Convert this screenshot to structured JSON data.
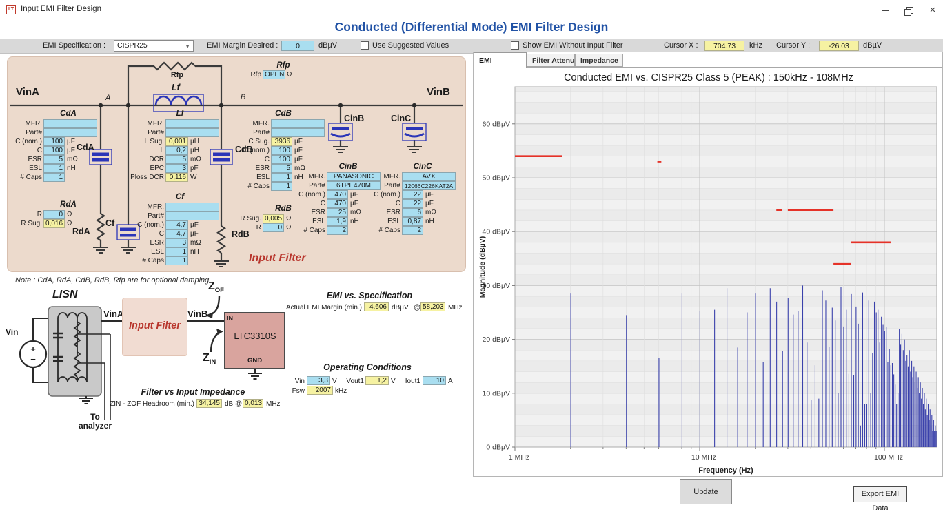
{
  "window": {
    "title": "Input EMI Filter Design",
    "icon_text": "LT",
    "close_glyph": "×"
  },
  "header": {
    "title": "Conducted (Differential Mode) EMI Filter Design"
  },
  "toolbar": {
    "emi_spec_label": "EMI Specification :",
    "emi_spec_value": "CISPR25",
    "margin_label": "EMI Margin Desired :",
    "margin_value": "0",
    "margin_unit": "dBµV",
    "use_suggested_label": "Use Suggested Values",
    "show_without_label": "Show EMI Without Input Filter",
    "cursor_x_label": "Cursor X :",
    "cursor_x_value": "704.73",
    "cursor_x_unit": "kHz",
    "cursor_y_label": "Cursor Y :",
    "cursor_y_value": "-26.03",
    "cursor_y_unit": "dBµV"
  },
  "circuit": {
    "note": "Note : CdA, RdA, CdB, RdB, Rfp are for optional damping",
    "input_filter_label": "Input Filter",
    "wire_labels": {
      "vina": "VinA",
      "vinb": "VinB",
      "node_a": "A",
      "node_b": "B",
      "rfp_sym": "Rfp",
      "lf_sym": "Lf",
      "cda_sym": "CdA",
      "cdb_sym": "CdB",
      "cf_sym": "Cf",
      "rda_sym": "RdA",
      "rdb_sym": "RdB",
      "cinb_sym": "CinB",
      "cinc_sym": "CinC"
    },
    "groups": {
      "rfp": {
        "header": "Rfp",
        "rows": [
          {
            "label": "Rfp",
            "value": "OPEN",
            "unit": "Ω",
            "style": "cyan"
          }
        ]
      },
      "cda": {
        "header": "CdA",
        "rows": [
          {
            "label": "MFR.",
            "value": "",
            "unit": "",
            "style": "cyan",
            "wide": true
          },
          {
            "label": "Part#",
            "value": "",
            "unit": "",
            "style": "cyan",
            "wide": true
          },
          {
            "label": "C (nom.)",
            "value": "100",
            "unit": "µF",
            "style": "cyan"
          },
          {
            "label": "C",
            "value": "100",
            "unit": "µF",
            "style": "cyan"
          },
          {
            "label": "ESR",
            "value": "5",
            "unit": "mΩ",
            "style": "cyan"
          },
          {
            "label": "ESL",
            "value": "1",
            "unit": "nH",
            "style": "cyan"
          },
          {
            "label": "# Caps",
            "value": "1",
            "unit": "",
            "style": "cyan"
          }
        ]
      },
      "rda": {
        "header": "RdA",
        "rows": [
          {
            "label": "R",
            "value": "0",
            "unit": "Ω",
            "style": "cyan"
          },
          {
            "label": "R Sug.",
            "value": "0,016",
            "unit": "Ω",
            "style": "yellow"
          }
        ]
      },
      "lf": {
        "header": "Lf",
        "rows": [
          {
            "label": "MFR.",
            "value": "",
            "unit": "",
            "style": "cyan",
            "wide": true
          },
          {
            "label": "Part#",
            "value": "",
            "unit": "",
            "style": "cyan",
            "wide": true
          },
          {
            "label": "L Sug.",
            "value": "0,001",
            "unit": "µH",
            "style": "yellow"
          },
          {
            "label": "L",
            "value": "0,2",
            "unit": "µH",
            "style": "cyan"
          },
          {
            "label": "DCR",
            "value": "5",
            "unit": "mΩ",
            "style": "cyan"
          },
          {
            "label": "EPC",
            "value": "3",
            "unit": "pF",
            "style": "cyan"
          },
          {
            "label": "Ploss DCR",
            "value": "0,116",
            "unit": "W",
            "style": "yellow"
          }
        ]
      },
      "cf": {
        "header": "Cf",
        "rows": [
          {
            "label": "MFR.",
            "value": "",
            "unit": "",
            "style": "cyan",
            "wide": true
          },
          {
            "label": "Part#",
            "value": "",
            "unit": "",
            "style": "cyan",
            "wide": true
          },
          {
            "label": "C (nom.)",
            "value": "4,7",
            "unit": "µF",
            "style": "cyan"
          },
          {
            "label": "C",
            "value": "4,7",
            "unit": "µF",
            "style": "cyan"
          },
          {
            "label": "ESR",
            "value": "3",
            "unit": "mΩ",
            "style": "cyan"
          },
          {
            "label": "ESL",
            "value": "1",
            "unit": "nH",
            "style": "cyan"
          },
          {
            "label": "# Caps",
            "value": "1",
            "unit": "",
            "style": "cyan"
          }
        ]
      },
      "cdb": {
        "header": "CdB",
        "rows": [
          {
            "label": "MFR.",
            "value": "",
            "unit": "",
            "style": "cyan",
            "wide": true
          },
          {
            "label": "Part#",
            "value": "",
            "unit": "",
            "style": "cyan",
            "wide": true
          },
          {
            "label": "C Sug.",
            "value": "3936",
            "unit": "µF",
            "style": "yellow"
          },
          {
            "label": "C (nom.)",
            "value": "100",
            "unit": "µF",
            "style": "cyan"
          },
          {
            "label": "C",
            "value": "100",
            "unit": "µF",
            "style": "cyan"
          },
          {
            "label": "ESR",
            "value": "5",
            "unit": "mΩ",
            "style": "cyan"
          },
          {
            "label": "ESL",
            "value": "1",
            "unit": "nH",
            "style": "cyan"
          },
          {
            "label": "# Caps",
            "value": "1",
            "unit": "",
            "style": "cyan"
          }
        ]
      },
      "rdb": {
        "header": "RdB",
        "rows": [
          {
            "label": "R Sug.",
            "value": "0,005",
            "unit": "Ω",
            "style": "yellow"
          },
          {
            "label": "R",
            "value": "0",
            "unit": "Ω",
            "style": "cyan"
          }
        ]
      },
      "cinb": {
        "header": "CinB",
        "rows": [
          {
            "label": "MFR.",
            "value": "PANASONIC",
            "unit": "",
            "style": "cyan",
            "wide": true
          },
          {
            "label": "Part#",
            "value": "6TPE470M",
            "unit": "",
            "style": "cyan",
            "wide": true
          },
          {
            "label": "C (nom.)",
            "value": "470",
            "unit": "µF",
            "style": "cyan"
          },
          {
            "label": "C",
            "value": "470",
            "unit": "µF",
            "style": "cyan"
          },
          {
            "label": "ESR",
            "value": "25",
            "unit": "mΩ",
            "style": "cyan"
          },
          {
            "label": "ESL",
            "value": "1,9",
            "unit": "nH",
            "style": "cyan"
          },
          {
            "label": "# Caps",
            "value": "2",
            "unit": "",
            "style": "cyan"
          }
        ]
      },
      "cinc": {
        "header": "CinC",
        "rows": [
          {
            "label": "MFR.",
            "value": "AVX",
            "unit": "",
            "style": "cyan",
            "wide": true
          },
          {
            "label": "Part#",
            "value": "12066C226KAT2A",
            "unit": "",
            "style": "cyan",
            "wide": true
          },
          {
            "label": "C (nom.)",
            "value": "22",
            "unit": "µF",
            "style": "cyan"
          },
          {
            "label": "C",
            "value": "22",
            "unit": "µF",
            "style": "cyan"
          },
          {
            "label": "ESR",
            "value": "6",
            "unit": "mΩ",
            "style": "cyan"
          },
          {
            "label": "ESL",
            "value": "0,87",
            "unit": "nH",
            "style": "cyan"
          },
          {
            "label": "# Caps",
            "value": "2",
            "unit": "",
            "style": "cyan"
          }
        ]
      }
    }
  },
  "diagram": {
    "lisn": "LISN",
    "vin": "Vin",
    "plus": "+",
    "minus": "−",
    "vina": "VinA",
    "vinb": "VinB",
    "input_filter": "Input Filter",
    "chip_in": "IN",
    "chip_name": "LTC3310S",
    "chip_gnd": "GND",
    "zof_main": "Z",
    "zof_sub": "OF",
    "zin_main": "Z",
    "zin_sub": "IN",
    "to_line1": "To",
    "to_line2": "analyzer"
  },
  "emi_spec_block": {
    "title": "EMI vs. Specification",
    "label": "Actual EMI Margin (min.)",
    "value": "4,606",
    "unit": "dBµV",
    "at": "@",
    "freq": "58,203",
    "freq_unit": "MHz"
  },
  "impedance_block": {
    "title": "Filter vs Input Impedance",
    "label": "ZIN - ZOF Headroom (min.)",
    "value": "34,145",
    "mid": "dB @",
    "freq": "0,013",
    "unit": "MHz"
  },
  "operating": {
    "title": "Operating Conditions",
    "vin_label": "Vin",
    "vin_value": "3,3",
    "vin_unit": "V",
    "vout_label": "Vout1",
    "vout_value": "1,2",
    "vout_unit": "V",
    "iout_label": "Iout1",
    "iout_value": "10",
    "iout_unit": "A",
    "fsw_label": "Fsw",
    "fsw_value": "2007",
    "fsw_unit": "kHz"
  },
  "tabs": [
    {
      "label": "EMI",
      "active": true
    },
    {
      "label": "Filter Attenuation",
      "active": false
    },
    {
      "label": "Impedance",
      "active": false
    }
  ],
  "buttons": {
    "update": "Update",
    "export": "Export EMI Data"
  },
  "chart_data": {
    "type": "line",
    "title": "Conducted EMI vs. CISPR25 Class 5 (PEAK) : 150kHz - 108MHz",
    "xlabel": "Frequency (Hz)",
    "ylabel": "Magnitude (dBµV)",
    "x_scale": "log",
    "x_range_mhz": [
      1,
      192
    ],
    "y_range_dbuv": [
      0,
      66.9
    ],
    "y_unit": "dBµV",
    "y_ticks": [
      0,
      10,
      20,
      30,
      40,
      50,
      60
    ],
    "x_ticks": [
      {
        "mhz": 1,
        "label": "1 MHz"
      },
      {
        "mhz": 10,
        "label": "10 MHz"
      },
      {
        "mhz": 100,
        "label": "100 MHz"
      }
    ],
    "grid": true,
    "legend": "none",
    "limit_color": "#e53228",
    "spectrum_color": "#3a41ab",
    "limit_segments_mhz_dbuv": [
      [
        0.53,
        1.8,
        54
      ],
      [
        5.9,
        6.2,
        53
      ],
      [
        26,
        28,
        44
      ],
      [
        30,
        53,
        44
      ],
      [
        53,
        66,
        34
      ],
      [
        66,
        108,
        38
      ]
    ],
    "spectrum": {
      "fundamental_mhz": 2.007,
      "harmonic_magnitudes_dbuv": [
        28.5,
        24.5,
        16.5,
        28.5,
        25.2,
        25.5,
        29.5,
        18.5,
        25,
        28.5,
        15.8,
        29.5,
        27,
        17.8,
        27.7,
        24.6,
        25.2,
        30,
        19.4,
        8.7,
        15.2,
        9,
        29.1,
        27.2,
        18.6,
        25.9,
        23.5,
        10,
        29.7,
        22.4,
        25.5,
        13.6,
        28.4,
        13.4,
        26.1,
        22.9,
        4,
        28.7,
        8,
        8,
        27.2,
        10,
        17.5,
        27,
        25,
        25.5,
        19.4,
        24.2,
        22.7,
        21.6,
        22.3,
        15.8,
        18.2,
        15.2,
        15.6,
        13.5,
        11.6,
        8,
        10,
        22,
        19,
        21,
        18,
        20,
        16,
        17,
        15,
        18,
        14,
        16,
        13,
        15,
        12,
        14,
        11,
        13,
        10,
        12,
        9,
        11,
        8,
        10,
        7,
        9,
        6,
        8,
        5,
        7,
        4,
        6,
        3,
        5,
        3,
        4,
        3,
        3
      ]
    }
  }
}
